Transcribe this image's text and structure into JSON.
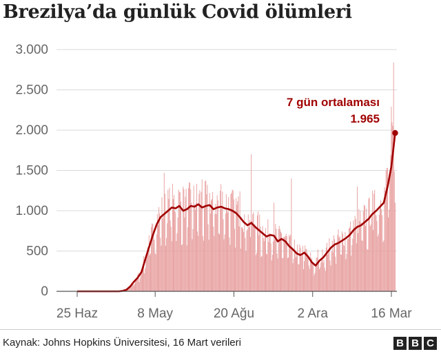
{
  "title": "Brezilya’da günlük Covid ölümleri",
  "source": "Kaynak: Johns Hopkins Üniversitesi, 16 Mart verileri",
  "logo": [
    "B",
    "B",
    "C"
  ],
  "colors": {
    "bars": "#e8a0a0",
    "average_line": "#a00000",
    "annotation": "#a00000",
    "grid": "#d9d9d9",
    "axis_text": "#666666"
  },
  "chart_data": {
    "type": "bar",
    "overlay_line": "7 gün ortalaması",
    "ylim": [
      0,
      3000
    ],
    "yticks": [
      0,
      500,
      1000,
      1500,
      2000,
      2500,
      3000
    ],
    "ytick_labels": [
      "0",
      "500",
      "1.000",
      "1.500",
      "2.000",
      "2.500",
      "3.000"
    ],
    "xticks": [
      {
        "label": "25 Haz",
        "day": 0
      },
      {
        "label": "8 May",
        "day": 103
      },
      {
        "label": "20 Ağu",
        "day": 207
      },
      {
        "label": "2 Ara",
        "day": 311
      },
      {
        "label": "16 Mar",
        "day": 415
      }
    ],
    "annotation": {
      "label": "7 gün ortalaması",
      "value_label": "1.965",
      "value": 1965
    },
    "average_points": [
      [
        0,
        0
      ],
      [
        55,
        0
      ],
      [
        60,
        5
      ],
      [
        65,
        20
      ],
      [
        70,
        60
      ],
      [
        75,
        120
      ],
      [
        80,
        170
      ],
      [
        85,
        240
      ],
      [
        90,
        400
      ],
      [
        95,
        550
      ],
      [
        100,
        700
      ],
      [
        105,
        830
      ],
      [
        110,
        920
      ],
      [
        115,
        960
      ],
      [
        120,
        1000
      ],
      [
        125,
        1040
      ],
      [
        130,
        1030
      ],
      [
        135,
        1060
      ],
      [
        140,
        1000
      ],
      [
        145,
        1020
      ],
      [
        150,
        1060
      ],
      [
        155,
        1050
      ],
      [
        160,
        1080
      ],
      [
        165,
        1040
      ],
      [
        170,
        1060
      ],
      [
        175,
        1070
      ],
      [
        180,
        1020
      ],
      [
        185,
        1040
      ],
      [
        190,
        1050
      ],
      [
        195,
        1030
      ],
      [
        200,
        1020
      ],
      [
        205,
        1000
      ],
      [
        210,
        970
      ],
      [
        215,
        920
      ],
      [
        220,
        860
      ],
      [
        225,
        820
      ],
      [
        230,
        850
      ],
      [
        235,
        800
      ],
      [
        240,
        760
      ],
      [
        245,
        720
      ],
      [
        250,
        680
      ],
      [
        255,
        700
      ],
      [
        260,
        690
      ],
      [
        265,
        620
      ],
      [
        270,
        650
      ],
      [
        275,
        620
      ],
      [
        280,
        560
      ],
      [
        285,
        520
      ],
      [
        290,
        470
      ],
      [
        295,
        450
      ],
      [
        300,
        480
      ],
      [
        305,
        430
      ],
      [
        310,
        360
      ],
      [
        315,
        320
      ],
      [
        320,
        380
      ],
      [
        325,
        420
      ],
      [
        330,
        480
      ],
      [
        335,
        540
      ],
      [
        340,
        580
      ],
      [
        345,
        600
      ],
      [
        350,
        630
      ],
      [
        355,
        660
      ],
      [
        360,
        700
      ],
      [
        365,
        760
      ],
      [
        370,
        800
      ],
      [
        375,
        820
      ],
      [
        380,
        860
      ],
      [
        385,
        900
      ],
      [
        390,
        960
      ],
      [
        395,
        1000
      ],
      [
        400,
        1050
      ],
      [
        405,
        1100
      ],
      [
        410,
        1300
      ],
      [
        415,
        1550
      ],
      [
        420,
        1965
      ]
    ],
    "bar_spikes": [
      [
        115,
        1470
      ],
      [
        140,
        1300
      ],
      [
        165,
        1390
      ],
      [
        190,
        1330
      ],
      [
        215,
        1240
      ],
      [
        230,
        1700
      ],
      [
        260,
        1100
      ],
      [
        283,
        1400
      ],
      [
        318,
        520
      ],
      [
        370,
        1300
      ],
      [
        390,
        1250
      ],
      [
        408,
        1500
      ],
      [
        415,
        2290
      ],
      [
        418,
        2840
      ],
      [
        420,
        1100
      ]
    ]
  }
}
